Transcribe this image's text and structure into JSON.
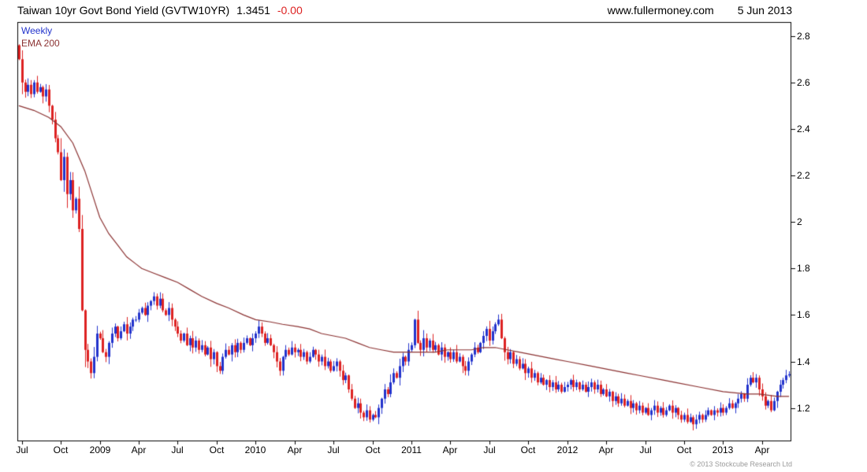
{
  "header": {
    "title": "Taiwan 10yr Govt Bond Yield (GVTW10YR)",
    "last_value": "1.3451",
    "change": "-0.00",
    "website": "www.fullermoney.com",
    "date": "5 Jun 2013"
  },
  "legend": {
    "series1": "Weekly",
    "series2": "EMA 200"
  },
  "footer": {
    "copyright": "© 2013 Stockcube Research Ltd"
  },
  "colors": {
    "up": "#2233cc",
    "down": "#dd2222",
    "ema": "#8b3232",
    "frame": "#000000",
    "change": "#dd2222"
  },
  "chart_data": {
    "type": "candlestick",
    "title": "Taiwan 10yr Govt Bond Yield (GVTW10YR)",
    "legend_entries": [
      "Weekly",
      "EMA 200"
    ],
    "legend_position": "top-left",
    "grid": false,
    "y_axis_side": "right",
    "y_ticks": [
      "2.8",
      "2.6",
      "2.4",
      "2.2",
      "2",
      "1.8",
      "1.6",
      "1.4",
      "1.2"
    ],
    "y_range": [
      1.06,
      2.86
    ],
    "x_tick_labels": [
      "Jul",
      "Oct",
      "2009",
      "Apr",
      "Jul",
      "Oct",
      "2010",
      "Apr",
      "Jul",
      "Oct",
      "2011",
      "Apr",
      "Jul",
      "Oct",
      "2012",
      "Apr",
      "Jul",
      "Oct",
      "2013",
      "Apr"
    ],
    "x_tick_weeks": [
      1,
      14,
      27,
      40,
      53,
      66,
      79,
      92,
      105,
      118,
      131,
      144,
      157,
      170,
      183,
      196,
      209,
      222,
      235,
      248
    ],
    "weekly_close": [
      2.7,
      2.6,
      2.56,
      2.59,
      2.55,
      2.6,
      2.56,
      2.58,
      2.54,
      2.57,
      2.5,
      2.44,
      2.36,
      2.3,
      2.18,
      2.28,
      2.12,
      2.18,
      2.05,
      2.1,
      1.97,
      1.62,
      1.45,
      1.4,
      1.35,
      1.42,
      1.52,
      1.5,
      1.44,
      1.42,
      1.48,
      1.52,
      1.55,
      1.5,
      1.53,
      1.56,
      1.52,
      1.55,
      1.58,
      1.58,
      1.61,
      1.63,
      1.6,
      1.64,
      1.66,
      1.68,
      1.64,
      1.67,
      1.62,
      1.6,
      1.63,
      1.58,
      1.55,
      1.52,
      1.49,
      1.52,
      1.47,
      1.5,
      1.46,
      1.49,
      1.45,
      1.47,
      1.43,
      1.46,
      1.41,
      1.44,
      1.38,
      1.36,
      1.42,
      1.45,
      1.43,
      1.47,
      1.44,
      1.48,
      1.45,
      1.48,
      1.5,
      1.47,
      1.5,
      1.52,
      1.55,
      1.52,
      1.48,
      1.5,
      1.47,
      1.44,
      1.4,
      1.36,
      1.42,
      1.45,
      1.43,
      1.46,
      1.44,
      1.45,
      1.42,
      1.44,
      1.4,
      1.42,
      1.45,
      1.43,
      1.4,
      1.42,
      1.38,
      1.4,
      1.36,
      1.38,
      1.4,
      1.36,
      1.32,
      1.34,
      1.28,
      1.24,
      1.2,
      1.22,
      1.18,
      1.16,
      1.19,
      1.15,
      1.17,
      1.16,
      1.2,
      1.24,
      1.28,
      1.26,
      1.31,
      1.35,
      1.33,
      1.38,
      1.42,
      1.4,
      1.45,
      1.47,
      1.58,
      1.48,
      1.45,
      1.5,
      1.46,
      1.49,
      1.45,
      1.47,
      1.43,
      1.46,
      1.42,
      1.44,
      1.41,
      1.44,
      1.4,
      1.42,
      1.38,
      1.36,
      1.4,
      1.43,
      1.46,
      1.44,
      1.48,
      1.51,
      1.54,
      1.49,
      1.53,
      1.56,
      1.58,
      1.5,
      1.44,
      1.41,
      1.44,
      1.39,
      1.41,
      1.37,
      1.39,
      1.35,
      1.37,
      1.33,
      1.35,
      1.31,
      1.33,
      1.3,
      1.32,
      1.29,
      1.31,
      1.28,
      1.3,
      1.27,
      1.29,
      1.3,
      1.32,
      1.29,
      1.31,
      1.28,
      1.3,
      1.27,
      1.29,
      1.31,
      1.28,
      1.3,
      1.26,
      1.28,
      1.25,
      1.27,
      1.23,
      1.25,
      1.22,
      1.24,
      1.21,
      1.23,
      1.2,
      1.22,
      1.19,
      1.21,
      1.18,
      1.2,
      1.17,
      1.19,
      1.21,
      1.18,
      1.2,
      1.17,
      1.19,
      1.21,
      1.18,
      1.2,
      1.17,
      1.15,
      1.17,
      1.14,
      1.16,
      1.13,
      1.15,
      1.17,
      1.15,
      1.17,
      1.19,
      1.17,
      1.19,
      1.18,
      1.2,
      1.18,
      1.2,
      1.22,
      1.2,
      1.22,
      1.24,
      1.26,
      1.24,
      1.3,
      1.33,
      1.31,
      1.33,
      1.28,
      1.25,
      1.21,
      1.23,
      1.19,
      1.23,
      1.27,
      1.3,
      1.32,
      1.34,
      1.345
    ],
    "ema200": {
      "weeks": [
        0,
        5,
        10,
        14,
        18,
        22,
        25,
        27,
        30,
        33,
        36,
        39,
        41,
        45,
        49,
        53,
        57,
        61,
        66,
        70,
        75,
        79,
        84,
        88,
        93,
        97,
        101,
        105,
        109,
        113,
        117,
        121,
        125,
        131,
        139,
        143,
        151,
        155,
        159,
        163,
        167,
        171,
        175,
        179,
        183,
        191,
        195,
        203,
        207,
        215,
        219,
        227,
        235,
        243,
        247,
        253,
        257
      ],
      "values": [
        2.5,
        2.48,
        2.45,
        2.41,
        2.34,
        2.22,
        2.1,
        2.02,
        1.95,
        1.9,
        1.85,
        1.82,
        1.8,
        1.78,
        1.76,
        1.74,
        1.71,
        1.68,
        1.65,
        1.63,
        1.6,
        1.58,
        1.57,
        1.56,
        1.55,
        1.54,
        1.52,
        1.51,
        1.5,
        1.48,
        1.46,
        1.45,
        1.44,
        1.44,
        1.44,
        1.45,
        1.45,
        1.46,
        1.46,
        1.45,
        1.44,
        1.43,
        1.42,
        1.41,
        1.4,
        1.38,
        1.37,
        1.35,
        1.34,
        1.32,
        1.31,
        1.29,
        1.27,
        1.26,
        1.26,
        1.25,
        1.25
      ]
    }
  }
}
